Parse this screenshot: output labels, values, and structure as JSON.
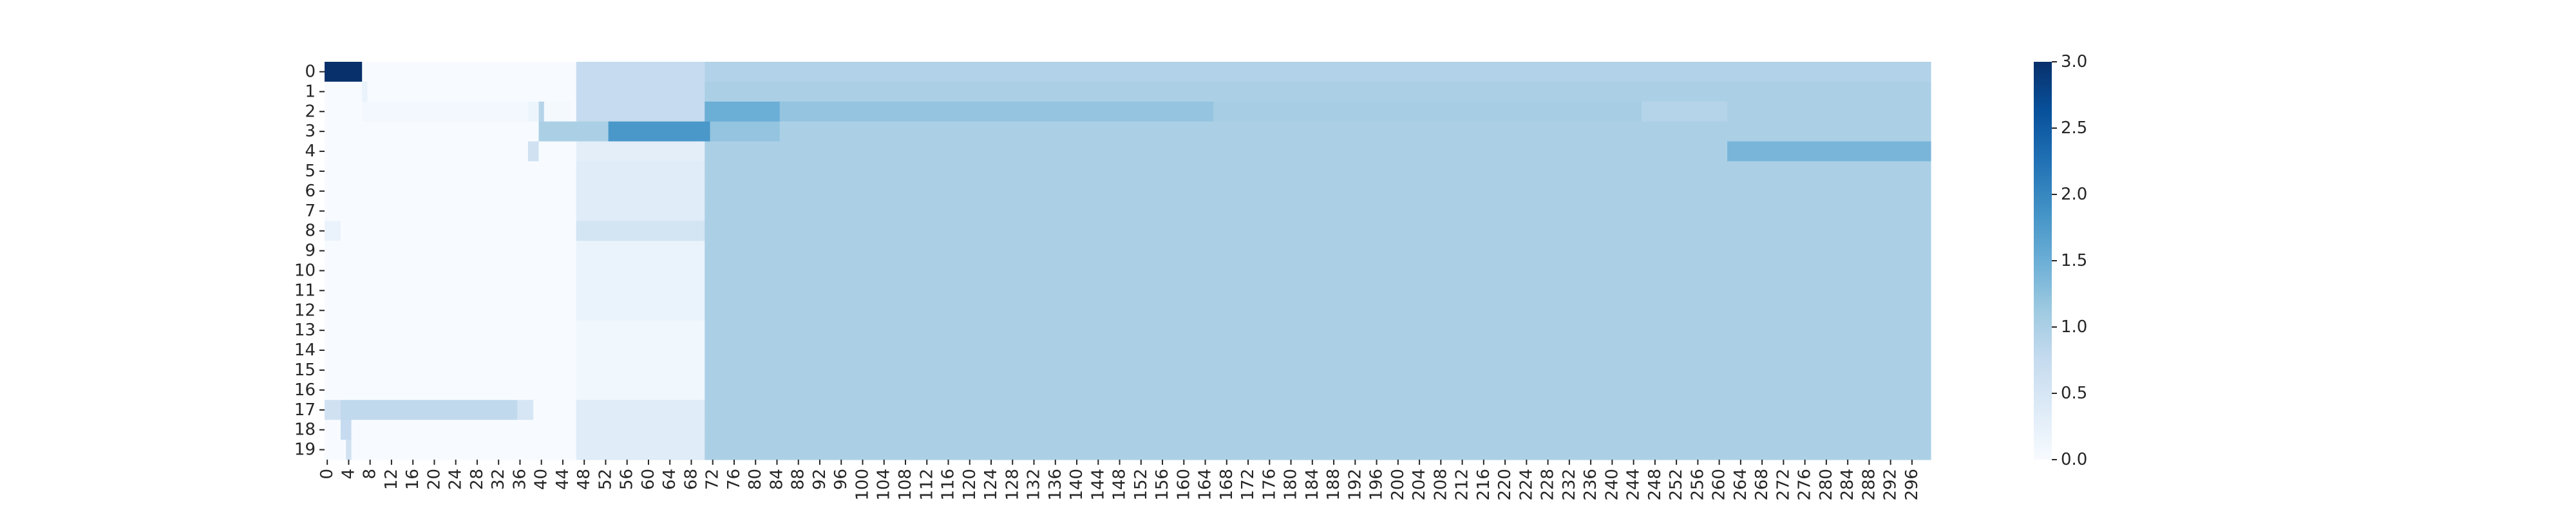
{
  "chart_data": {
    "type": "heatmap",
    "title": "",
    "xlabel": "",
    "ylabel": "",
    "colormap": "Blues",
    "colormap_stops": [
      "#f7fbff",
      "#deebf7",
      "#c6dbef",
      "#9ecae1",
      "#6baed6",
      "#4292c6",
      "#2171b5",
      "#08519c",
      "#08306b"
    ],
    "rows": 20,
    "cols": 300,
    "vmin": 0.0,
    "vmax": 3.0,
    "x_tick_step": 4,
    "y_ticks": [
      "0",
      "1",
      "2",
      "3",
      "4",
      "5",
      "6",
      "7",
      "8",
      "9",
      "10",
      "11",
      "12",
      "13",
      "14",
      "15",
      "16",
      "17",
      "18",
      "19"
    ],
    "colorbar": {
      "ticks": [
        0.0,
        0.5,
        1.0,
        1.5,
        2.0,
        2.5,
        3.0
      ],
      "tick_labels": [
        "0.0",
        "0.5",
        "1.0",
        "1.5",
        "2.0",
        "2.5",
        "3.0"
      ]
    },
    "background_value": 0.0,
    "cell_ranges": [
      {
        "rows": [
          0,
          19
        ],
        "cols": [
          71,
          299
        ],
        "value": 1.0
      },
      {
        "rows": [
          0,
          0
        ],
        "cols": [
          0,
          6
        ],
        "value": 3.0
      },
      {
        "rows": [
          0,
          0
        ],
        "cols": [
          71,
          299
        ],
        "value": 0.95
      },
      {
        "rows": [
          0,
          0
        ],
        "cols": [
          47,
          70
        ],
        "value": 0.75
      },
      {
        "rows": [
          1,
          1
        ],
        "cols": [
          47,
          70
        ],
        "value": 0.75
      },
      {
        "rows": [
          1,
          1
        ],
        "cols": [
          7,
          7
        ],
        "value": 0.2
      },
      {
        "rows": [
          2,
          2
        ],
        "cols": [
          7,
          45
        ],
        "value": 0.08
      },
      {
        "rows": [
          2,
          2
        ],
        "cols": [
          38,
          39
        ],
        "value": 0.15
      },
      {
        "rows": [
          2,
          2
        ],
        "cols": [
          40,
          40
        ],
        "value": 0.9
      },
      {
        "rows": [
          2,
          2
        ],
        "cols": [
          41,
          45
        ],
        "value": 0.05
      },
      {
        "rows": [
          2,
          2
        ],
        "cols": [
          47,
          70
        ],
        "value": 0.75
      },
      {
        "rows": [
          2,
          2
        ],
        "cols": [
          71,
          84
        ],
        "value": 1.5
      },
      {
        "rows": [
          2,
          2
        ],
        "cols": [
          85,
          165
        ],
        "value": 1.2
      },
      {
        "rows": [
          2,
          2
        ],
        "cols": [
          166,
          245
        ],
        "value": 1.05
      },
      {
        "rows": [
          2,
          2
        ],
        "cols": [
          246,
          261
        ],
        "value": 0.9
      },
      {
        "rows": [
          3,
          3
        ],
        "cols": [
          40,
          52
        ],
        "value": 1.0
      },
      {
        "rows": [
          3,
          3
        ],
        "cols": [
          53,
          71
        ],
        "value": 1.8
      },
      {
        "rows": [
          3,
          3
        ],
        "cols": [
          72,
          84
        ],
        "value": 1.2
      },
      {
        "rows": [
          4,
          4
        ],
        "cols": [
          38,
          39
        ],
        "value": 0.6
      },
      {
        "rows": [
          4,
          4
        ],
        "cols": [
          47,
          70
        ],
        "value": 0.3
      },
      {
        "rows": [
          4,
          4
        ],
        "cols": [
          262,
          299
        ],
        "value": 1.4
      },
      {
        "rows": [
          5,
          7
        ],
        "cols": [
          47,
          70
        ],
        "value": 0.35
      },
      {
        "rows": [
          8,
          8
        ],
        "cols": [
          0,
          2
        ],
        "value": 0.2
      },
      {
        "rows": [
          8,
          8
        ],
        "cols": [
          47,
          70
        ],
        "value": 0.55
      },
      {
        "rows": [
          9,
          12
        ],
        "cols": [
          47,
          70
        ],
        "value": 0.2
      },
      {
        "rows": [
          13,
          16
        ],
        "cols": [
          47,
          70
        ],
        "value": 0.1
      },
      {
        "rows": [
          17,
          17
        ],
        "cols": [
          0,
          2
        ],
        "value": 0.6
      },
      {
        "rows": [
          17,
          17
        ],
        "cols": [
          3,
          35
        ],
        "value": 0.8
      },
      {
        "rows": [
          17,
          17
        ],
        "cols": [
          36,
          38
        ],
        "value": 0.5
      },
      {
        "rows": [
          17,
          17
        ],
        "cols": [
          47,
          70
        ],
        "value": 0.35
      },
      {
        "rows": [
          18,
          18
        ],
        "cols": [
          3,
          4
        ],
        "value": 0.75
      },
      {
        "rows": [
          18,
          18
        ],
        "cols": [
          47,
          70
        ],
        "value": 0.35
      },
      {
        "rows": [
          19,
          19
        ],
        "cols": [
          4,
          4
        ],
        "value": 0.6
      },
      {
        "rows": [
          19,
          19
        ],
        "cols": [
          47,
          70
        ],
        "value": 0.35
      }
    ]
  }
}
